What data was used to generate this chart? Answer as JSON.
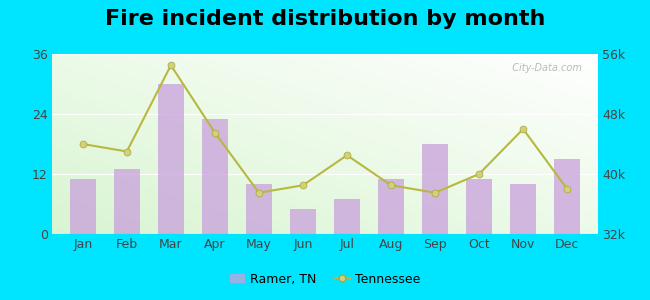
{
  "title": "Fire incident distribution by month",
  "months": [
    "Jan",
    "Feb",
    "Mar",
    "Apr",
    "May",
    "Jun",
    "Jul",
    "Aug",
    "Sep",
    "Oct",
    "Nov",
    "Dec"
  ],
  "ramer_values": [
    11,
    13,
    30,
    23,
    10,
    5,
    7,
    11,
    18,
    11,
    10,
    15
  ],
  "tennessee_values": [
    44000,
    43000,
    54500,
    45500,
    37500,
    38500,
    42500,
    38500,
    37500,
    40000,
    46000,
    38000
  ],
  "bar_color": "#c9a0dc",
  "bar_alpha": 0.75,
  "line_color": "#b8b840",
  "line_marker": "o",
  "line_marker_facecolor": "#d0d080",
  "line_marker_edgecolor": "#a8a830",
  "line_marker_size": 5,
  "outer_bg": "#00e5ff",
  "plot_bg_colors": [
    "#c8e8c0",
    "#f5fff5"
  ],
  "left_ylim": [
    0,
    36
  ],
  "left_yticks": [
    0,
    12,
    24,
    36
  ],
  "right_ylim": [
    32000,
    56000
  ],
  "right_yticks": [
    32000,
    40000,
    48000,
    56000
  ],
  "right_yticklabels": [
    "32k",
    "40k",
    "48k",
    "56k"
  ],
  "title_fontsize": 16,
  "tick_fontsize": 9,
  "legend_fontsize": 9,
  "watermark": "⚙ City-Data.com"
}
